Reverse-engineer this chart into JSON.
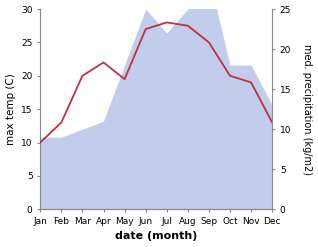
{
  "months": [
    "Jan",
    "Feb",
    "Mar",
    "Apr",
    "May",
    "Jun",
    "Jul",
    "Aug",
    "Sep",
    "Oct",
    "Nov",
    "Dec"
  ],
  "temp_C": [
    10,
    13,
    20,
    22,
    19.5,
    27,
    28,
    27.5,
    25,
    20,
    19,
    13
  ],
  "precip_mm": [
    9,
    9,
    10,
    11,
    18,
    25,
    22,
    25,
    29,
    18,
    18,
    13
  ],
  "temp_color": "#c03040",
  "precip_fill_color": "#b8c4e8",
  "left_ylim": [
    0,
    30
  ],
  "right_ylim": [
    0,
    25
  ],
  "left_ylabel": "max temp (C)",
  "right_ylabel": "med. precipitation (kg/m2)",
  "xlabel": "date (month)",
  "label_fontsize": 7.5,
  "tick_fontsize": 6.5,
  "xlabel_fontsize": 8,
  "bg_color": "#ffffff",
  "left_yticks": [
    0,
    5,
    10,
    15,
    20,
    25,
    30
  ],
  "right_yticks": [
    0,
    5,
    10,
    15,
    20,
    25
  ]
}
